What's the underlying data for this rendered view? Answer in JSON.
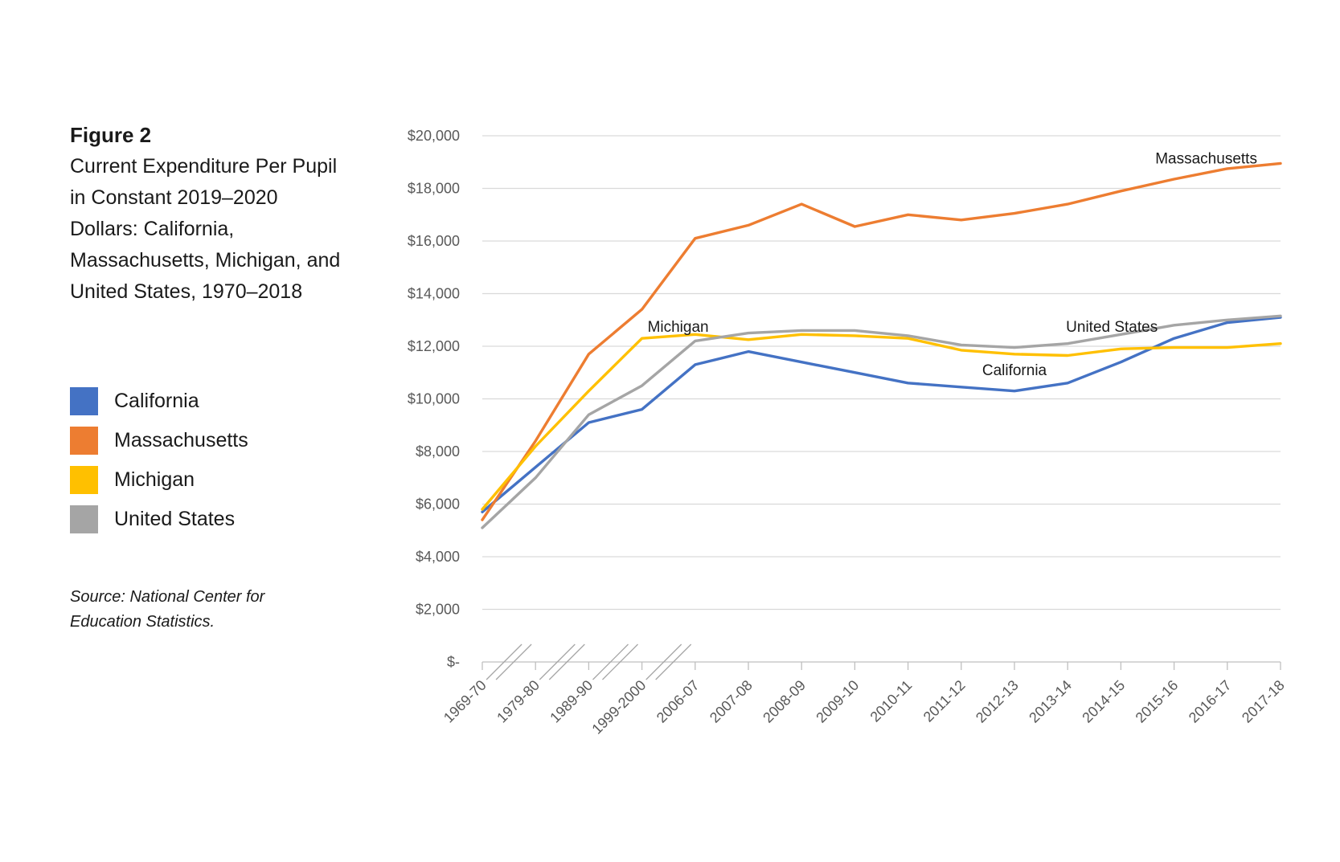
{
  "figure": {
    "label": "Figure 2",
    "title": "Current Expenditure Per Pupil in Constant 2019–2020 Dollars: California, Massachusetts, Michigan, and United States, 1970–2018",
    "source": "Source: National Center for Education Statistics."
  },
  "legend": [
    {
      "name": "California",
      "color": "#4472C4"
    },
    {
      "name": "Massachusetts",
      "color": "#ED7D31"
    },
    {
      "name": "Michigan",
      "color": "#FFC000"
    },
    {
      "name": "United States",
      "color": "#A5A5A5"
    }
  ],
  "chart_data": {
    "type": "line",
    "title": "",
    "xlabel": "",
    "ylabel": "",
    "ylim": [
      0,
      20000
    ],
    "y_ticks": [
      0,
      2000,
      4000,
      6000,
      8000,
      10000,
      12000,
      14000,
      16000,
      18000,
      20000
    ],
    "y_tick_labels": [
      "$-",
      "$2,000",
      "$4,000",
      "$6,000",
      "$8,000",
      "$10,000",
      "$12,000",
      "$14,000",
      "$16,000",
      "$18,000",
      "$20,000"
    ],
    "grid": true,
    "legend_placement": "left",
    "axis_breaks_after": [
      "1969-70",
      "1979-80",
      "1989-90",
      "1999-2000"
    ],
    "categories": [
      "1969-70",
      "1979-80",
      "1989-90",
      "1999-2000",
      "2006-07",
      "2007-08",
      "2008-09",
      "2009-10",
      "2010-11",
      "2011-12",
      "2012-13",
      "2013-14",
      "2014-15",
      "2015-16",
      "2016-17",
      "2017-18"
    ],
    "series": [
      {
        "name": "California",
        "color": "#4472C4",
        "values": [
          5700,
          7400,
          9100,
          9600,
          11300,
          11800,
          11400,
          11000,
          10600,
          10450,
          10300,
          10600,
          11400,
          12300,
          12900,
          13100
        ]
      },
      {
        "name": "Massachusetts",
        "color": "#ED7D31",
        "values": [
          5400,
          8400,
          11700,
          13400,
          16100,
          16600,
          17400,
          16550,
          17000,
          16800,
          17050,
          17400,
          17900,
          18350,
          18750,
          18950
        ]
      },
      {
        "name": "Michigan",
        "color": "#FFC000",
        "values": [
          5800,
          8200,
          10300,
          12300,
          12450,
          12250,
          12450,
          12400,
          12300,
          11850,
          11700,
          11650,
          11900,
          11950,
          11950,
          12100
        ]
      },
      {
        "name": "United States",
        "color": "#A5A5A5",
        "values": [
          5100,
          7000,
          9400,
          10500,
          12200,
          12500,
          12600,
          12600,
          12400,
          12050,
          11950,
          12100,
          12450,
          12800,
          13000,
          13150
        ]
      }
    ],
    "annotations": [
      {
        "text": "Massachusetts",
        "category": "2015-16",
        "value": 18950
      },
      {
        "text": "Michigan",
        "category": "1999-2000",
        "value": 12550
      },
      {
        "text": "United States",
        "category": "2013-14",
        "value": 12550
      },
      {
        "text": "California",
        "category": "2012-13",
        "value": 10900
      }
    ]
  }
}
